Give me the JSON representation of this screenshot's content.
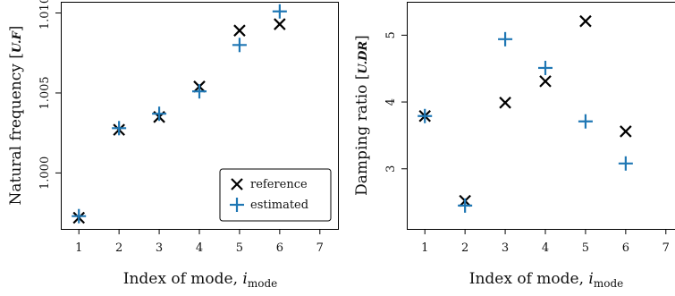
{
  "colors": {
    "reference": "#000000",
    "estimated": "#1f77b4"
  },
  "legend": {
    "reference": "reference",
    "estimated": "estimated",
    "placement": "bottom-right"
  },
  "chart_data": [
    {
      "type": "scatter",
      "xlabel_text": "Index of mode, ",
      "xlabel_var": "i",
      "xlabel_sub": "mode",
      "ylabel_text": "Natural frequency [",
      "ylabel_unit": "U.F",
      "ylabel_close": "]",
      "xlim": [
        0.55,
        7.45
      ],
      "ylim": [
        0.9965,
        1.0107
      ],
      "xticks": [
        "1",
        "2",
        "3",
        "4",
        "5",
        "6",
        "7"
      ],
      "xtick_values": [
        1,
        2,
        3,
        4,
        5,
        6,
        7
      ],
      "yticks": [
        "1.000",
        "1.005",
        "1.010"
      ],
      "ytick_values": [
        1.0,
        1.005,
        1.01
      ],
      "series": [
        {
          "name": "reference",
          "marker": "x",
          "x": [
            1,
            2,
            3,
            4,
            5,
            6
          ],
          "y": [
            0.9972,
            1.0027,
            1.0035,
            1.0054,
            1.0089,
            1.0093
          ]
        },
        {
          "name": "estimated",
          "marker": "+",
          "x": [
            1,
            2,
            3,
            4,
            5,
            6
          ],
          "y": [
            0.9973,
            1.0028,
            1.0037,
            1.0051,
            1.008,
            1.0101
          ]
        }
      ]
    },
    {
      "type": "scatter",
      "xlabel_text": "Index of mode, ",
      "xlabel_var": "i",
      "xlabel_sub": "mode",
      "ylabel_text": "Damping ratio [",
      "ylabel_unit": "U.DR",
      "ylabel_close": "]",
      "xlim": [
        0.55,
        7.45
      ],
      "ylim": [
        2.1,
        5.5
      ],
      "xticks": [
        "1",
        "2",
        "3",
        "4",
        "5",
        "6",
        "7"
      ],
      "xtick_values": [
        1,
        2,
        3,
        4,
        5,
        6,
        7
      ],
      "yticks": [
        "3",
        "4",
        "5"
      ],
      "ytick_values": [
        3,
        4,
        5
      ],
      "series": [
        {
          "name": "reference",
          "marker": "x",
          "x": [
            1,
            2,
            3,
            4,
            5,
            6
          ],
          "y": [
            3.79,
            2.52,
            3.99,
            4.31,
            5.21,
            3.56
          ]
        },
        {
          "name": "estimated",
          "marker": "+",
          "x": [
            1,
            2,
            3,
            4,
            5,
            6
          ],
          "y": [
            3.79,
            2.45,
            4.94,
            4.51,
            3.71,
            3.08
          ]
        }
      ]
    }
  ]
}
